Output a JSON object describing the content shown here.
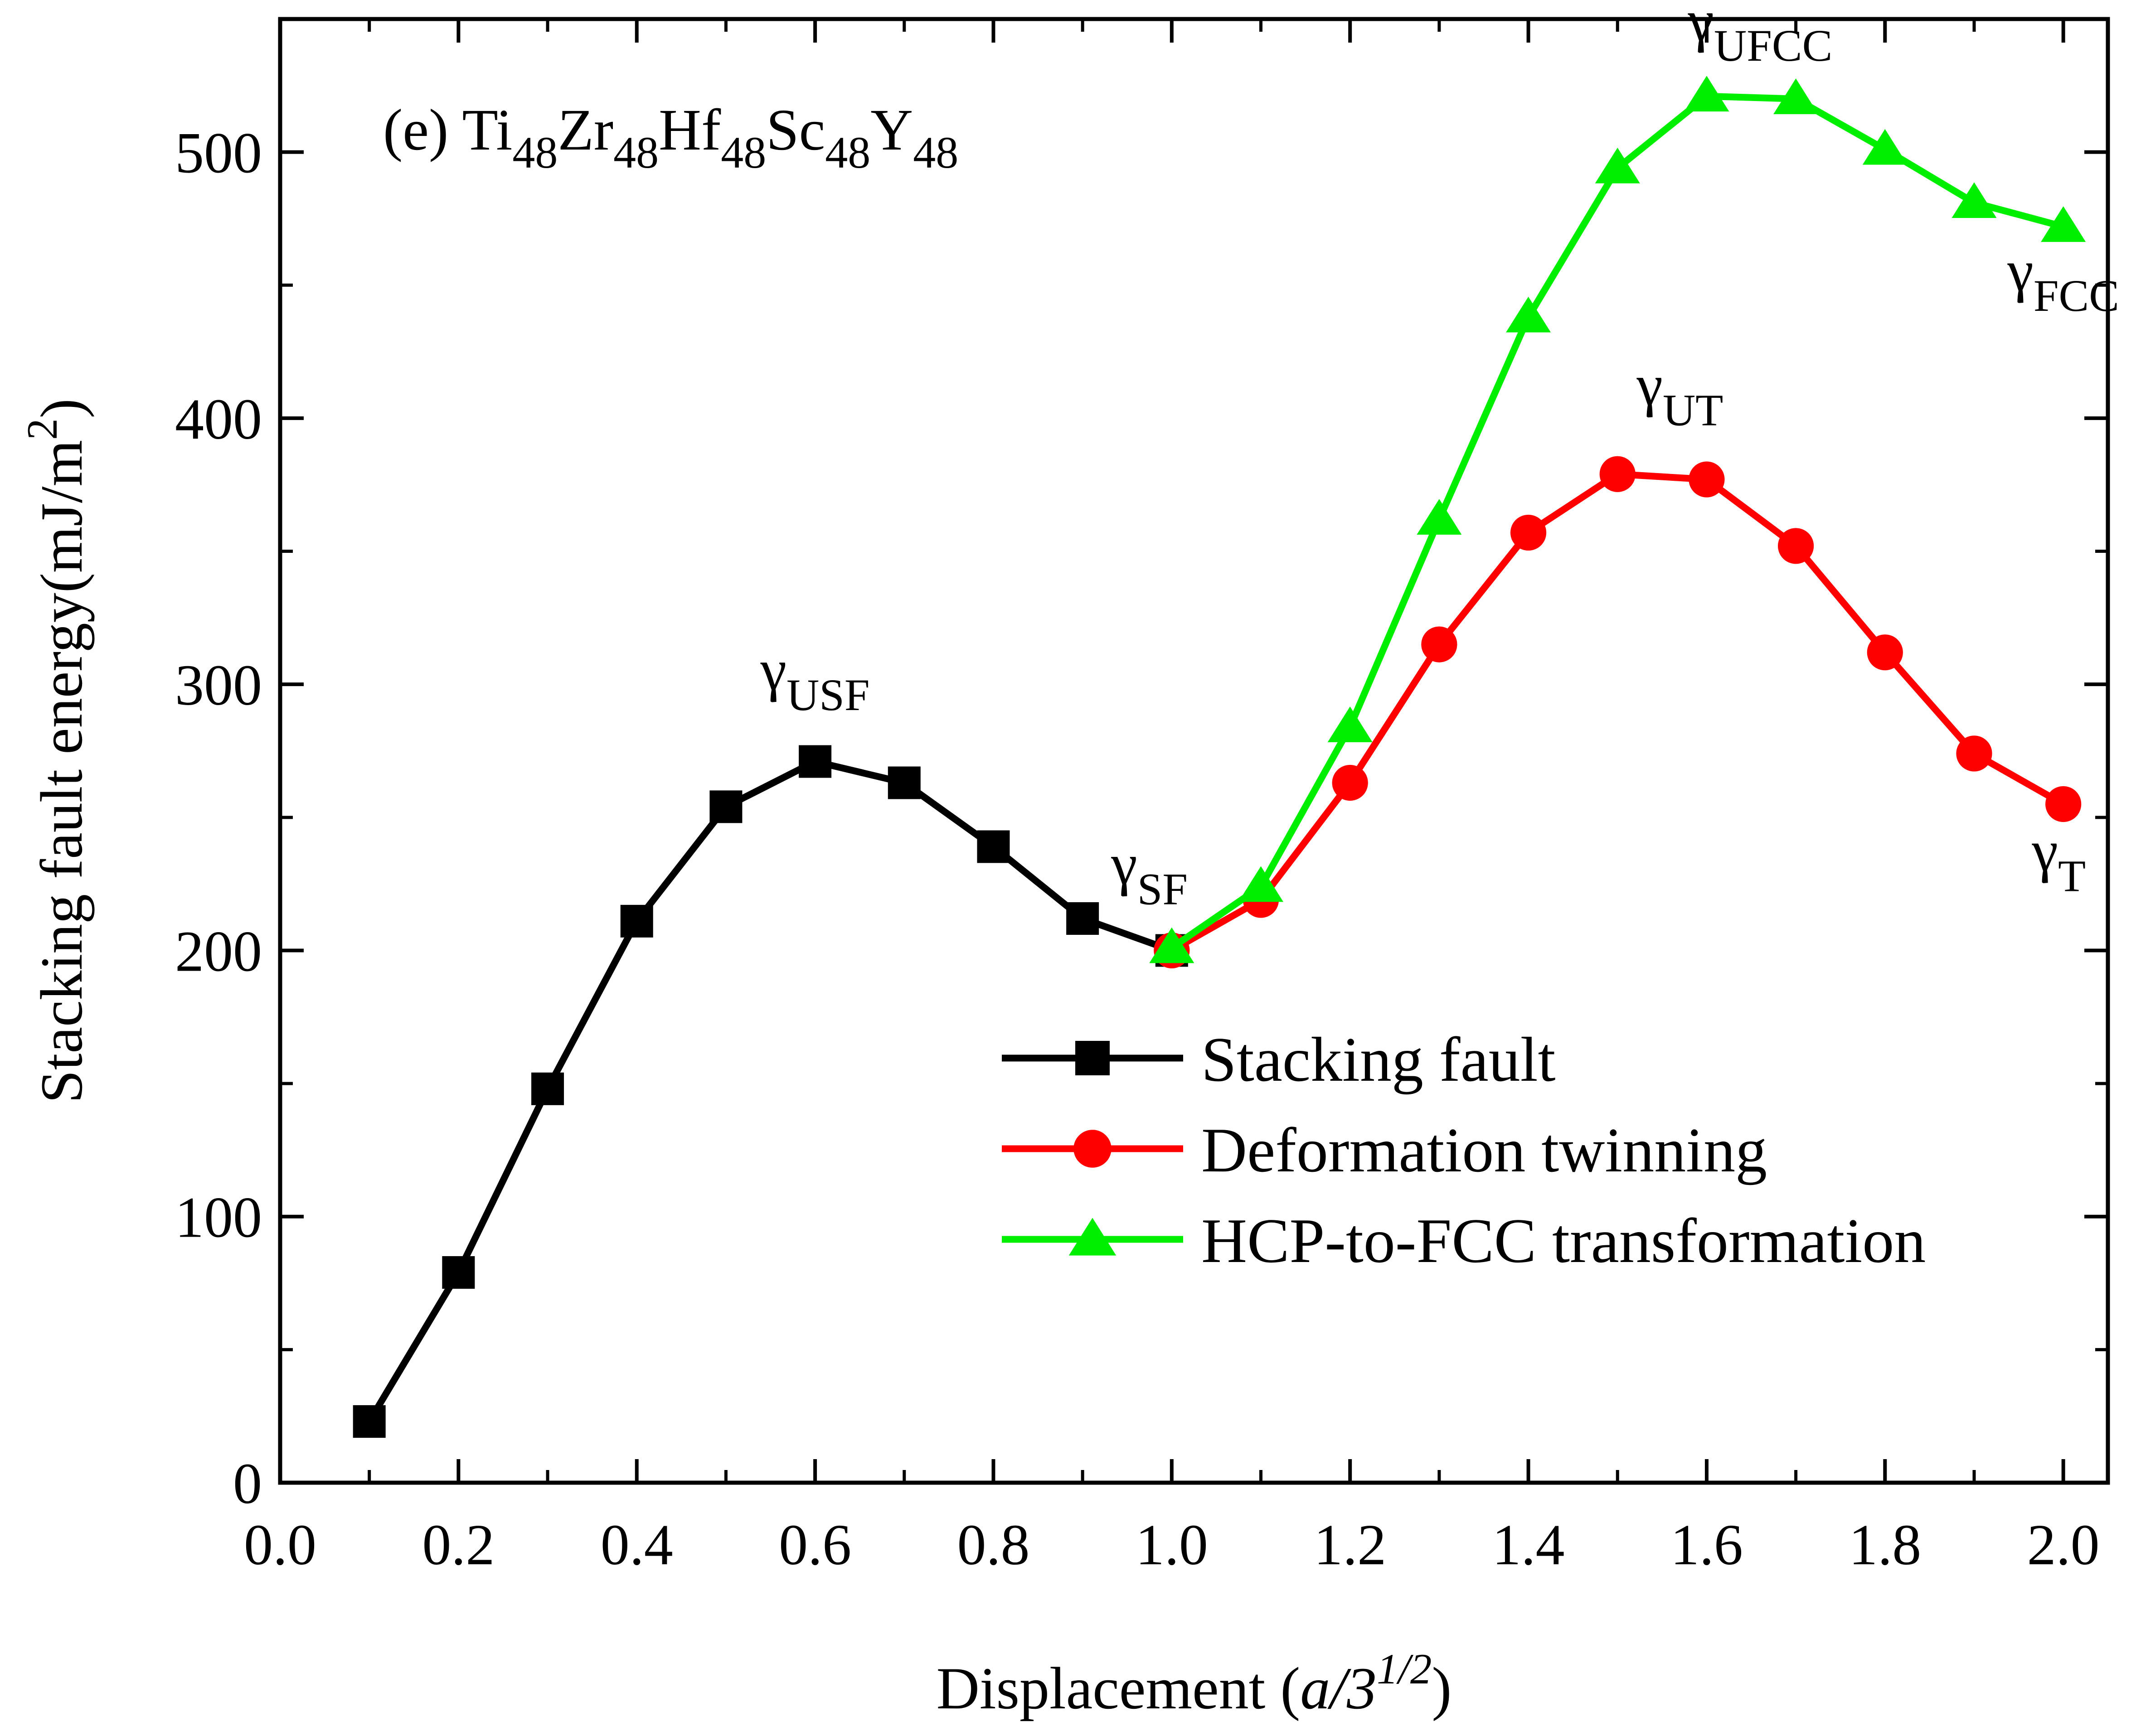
{
  "chart_data": {
    "type": "line",
    "panel": {
      "prefix": "(e) ",
      "parts": [
        {
          "text": "Ti"
        },
        {
          "text": "48",
          "sub": true
        },
        {
          "text": "Zr"
        },
        {
          "text": "48",
          "sub": true
        },
        {
          "text": "Hf"
        },
        {
          "text": "48",
          "sub": true
        },
        {
          "text": "Sc"
        },
        {
          "text": "48",
          "sub": true
        },
        {
          "text": "Y"
        },
        {
          "text": "48",
          "sub": true
        }
      ]
    },
    "xlabel": {
      "main": "Displacement (",
      "italic": "a/3",
      "sup": "1/2",
      "close": ")"
    },
    "ylabel": {
      "main": "Stacking fault energy(mJ/m",
      "sup": "2",
      "close": ")"
    },
    "xlim": [
      0.0,
      2.05
    ],
    "ylim": [
      0,
      550
    ],
    "xticks": [
      0.0,
      0.2,
      0.4,
      0.6,
      0.8,
      1.0,
      1.2,
      1.4,
      1.6,
      1.8,
      2.0
    ],
    "xtick_labels": [
      "0.0",
      "0.2",
      "0.4",
      "0.6",
      "0.8",
      "1.0",
      "1.2",
      "1.4",
      "1.6",
      "1.8",
      "2.0"
    ],
    "yticks": [
      0,
      100,
      200,
      300,
      400,
      500
    ],
    "ytick_labels": [
      "0",
      "100",
      "200",
      "300",
      "400",
      "500"
    ],
    "series": [
      {
        "name": "Stacking fault",
        "color": "#000000",
        "marker": "square",
        "x": [
          0.1,
          0.2,
          0.3,
          0.4,
          0.5,
          0.6,
          0.7,
          0.8,
          0.9,
          1.0
        ],
        "y": [
          23,
          79,
          148,
          211,
          254,
          271,
          263,
          239,
          212,
          200
        ]
      },
      {
        "name": "Deformation twinning",
        "color": "#ff0000",
        "marker": "circle",
        "x": [
          1.0,
          1.1,
          1.2,
          1.3,
          1.4,
          1.5,
          1.6,
          1.7,
          1.8,
          1.9,
          2.0
        ],
        "y": [
          200,
          219,
          263,
          315,
          357,
          379,
          377,
          352,
          312,
          274,
          255
        ]
      },
      {
        "name": "HCP-to-FCC transformation",
        "color": "#00ee00",
        "marker": "triangle",
        "x": [
          1.0,
          1.1,
          1.2,
          1.3,
          1.4,
          1.5,
          1.6,
          1.7,
          1.8,
          1.9,
          2.0
        ],
        "y": [
          201,
          224,
          284,
          362,
          438,
          494,
          521,
          520,
          501,
          481,
          472
        ]
      }
    ],
    "annotations": [
      {
        "base": "γ",
        "sub": "USF",
        "x": 0.6,
        "y": 298
      },
      {
        "base": "γ",
        "sub": "SF",
        "x": 0.975,
        "y": 225
      },
      {
        "base": "γ",
        "sub": "UT",
        "x": 1.57,
        "y": 405
      },
      {
        "base": "γ",
        "sub": "UFCC",
        "x": 1.66,
        "y": 542
      },
      {
        "base": "γ",
        "sub": "FCC",
        "x": 2.0,
        "y": 448
      },
      {
        "base": "γ",
        "sub": "T",
        "x": 1.995,
        "y": 230
      }
    ],
    "legend": {
      "placement": "lower-right"
    }
  }
}
